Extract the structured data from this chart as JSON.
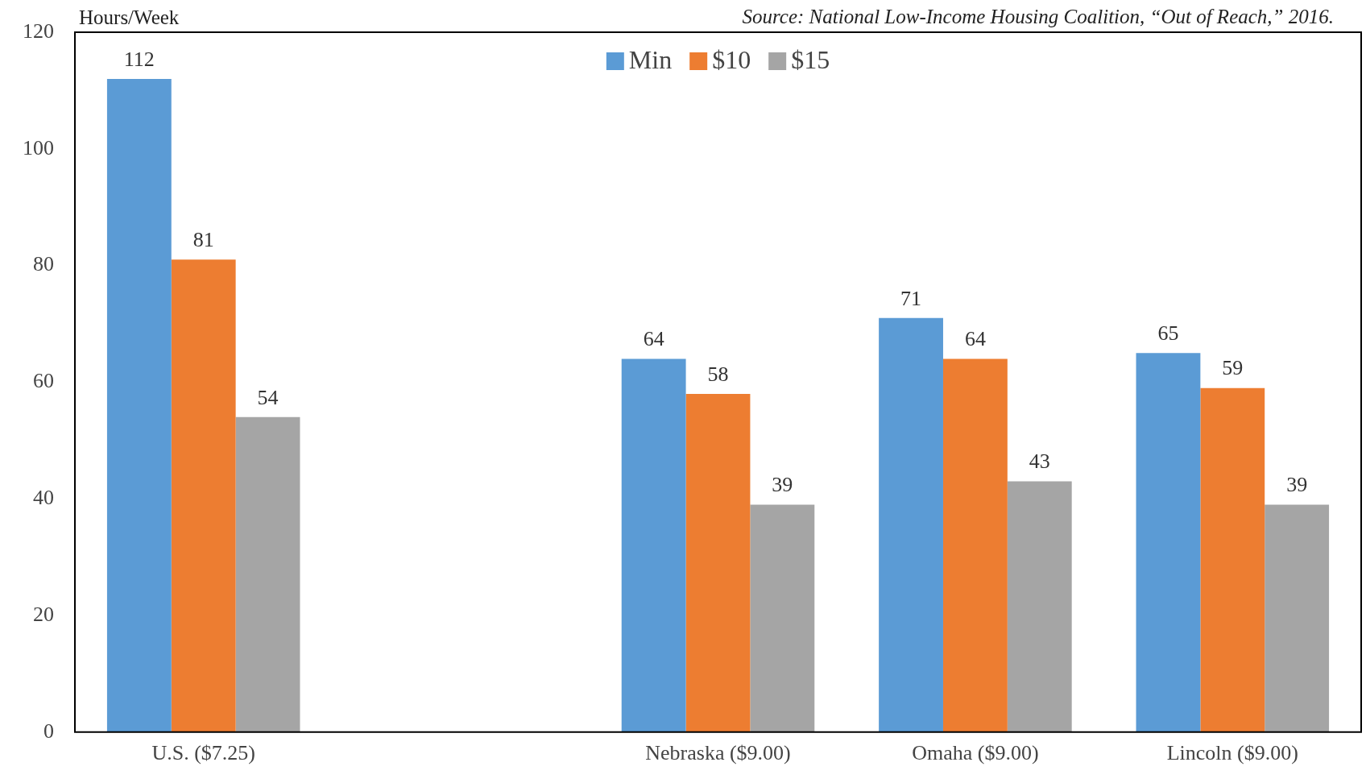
{
  "chart_data": {
    "type": "bar",
    "ylabel": "Hours/Week",
    "annotations": [
      "Source: National Low-Income Housing Coalition, “Out of Reach,” 2016."
    ],
    "categories": [
      "U.S. ($7.25)",
      null,
      "Nebraska ($9.00)",
      "Omaha ($9.00)",
      "Lincoln ($9.00)"
    ],
    "series": [
      {
        "name": "Min",
        "color": "#5b9bd5",
        "values": [
          112,
          null,
          64,
          71,
          65
        ]
      },
      {
        "name": "$10",
        "color": "#ed7d31",
        "values": [
          81,
          null,
          58,
          64,
          59
        ]
      },
      {
        "name": "$15",
        "color": "#a5a5a5",
        "values": [
          54,
          null,
          39,
          43,
          39
        ]
      }
    ],
    "ylim": [
      0,
      120
    ],
    "yticks": [
      0,
      20,
      40,
      60,
      80,
      100,
      120
    ],
    "grid": false,
    "legend": "top",
    "data_labels": true
  }
}
